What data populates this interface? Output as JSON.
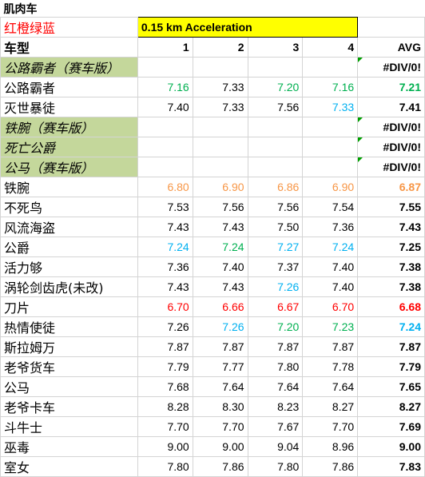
{
  "sheet_title": "肌肉车",
  "legend": "红橙绿蓝",
  "test_name": "0.15 km Acceleration",
  "header": {
    "name": "车型",
    "runs": [
      "1",
      "2",
      "3",
      "4"
    ],
    "avg": "AVG"
  },
  "colors": {
    "green": "#00b050",
    "blue": "#00b0f0",
    "orange": "#f79646",
    "red": "#ff0000",
    "highlight": "#ffff00",
    "subheader_fill": "#c4d79b"
  },
  "rows": [
    {
      "type": "sub",
      "name": "公路霸者（赛车版）",
      "avg": "#DIV/0!"
    },
    {
      "type": "car",
      "name": "公路霸者",
      "v": [
        {
          "t": "7.16",
          "c": "green"
        },
        {
          "t": "7.33",
          "c": ""
        },
        {
          "t": "7.20",
          "c": "green"
        },
        {
          "t": "7.16",
          "c": "green"
        }
      ],
      "avg": {
        "t": "7.21",
        "c": "green"
      }
    },
    {
      "type": "car",
      "name": "灭世暴徒",
      "v": [
        {
          "t": "7.40",
          "c": ""
        },
        {
          "t": "7.33",
          "c": ""
        },
        {
          "t": "7.56",
          "c": ""
        },
        {
          "t": "7.33",
          "c": "blue"
        }
      ],
      "avg": {
        "t": "7.41",
        "c": ""
      }
    },
    {
      "type": "sub",
      "name": "铁腕（赛车版）",
      "avg": "#DIV/0!"
    },
    {
      "type": "sub",
      "name": "死亡公爵",
      "avg": "#DIV/0!"
    },
    {
      "type": "sub",
      "name": "公马（赛车版）",
      "avg": "#DIV/0!"
    },
    {
      "type": "car",
      "name": "铁腕",
      "v": [
        {
          "t": "6.80",
          "c": "orange"
        },
        {
          "t": "6.90",
          "c": "orange"
        },
        {
          "t": "6.86",
          "c": "orange"
        },
        {
          "t": "6.90",
          "c": "orange"
        }
      ],
      "avg": {
        "t": "6.87",
        "c": "orange"
      }
    },
    {
      "type": "car",
      "name": "不死鸟",
      "v": [
        {
          "t": "7.53",
          "c": ""
        },
        {
          "t": "7.56",
          "c": ""
        },
        {
          "t": "7.56",
          "c": ""
        },
        {
          "t": "7.54",
          "c": ""
        }
      ],
      "avg": {
        "t": "7.55",
        "c": ""
      }
    },
    {
      "type": "car",
      "name": "风流海盗",
      "v": [
        {
          "t": "7.43",
          "c": ""
        },
        {
          "t": "7.43",
          "c": ""
        },
        {
          "t": "7.50",
          "c": ""
        },
        {
          "t": "7.36",
          "c": ""
        }
      ],
      "avg": {
        "t": "7.43",
        "c": ""
      }
    },
    {
      "type": "car",
      "name": "公爵",
      "v": [
        {
          "t": "7.24",
          "c": "blue"
        },
        {
          "t": "7.24",
          "c": "green"
        },
        {
          "t": "7.27",
          "c": "blue"
        },
        {
          "t": "7.24",
          "c": "blue"
        }
      ],
      "avg": {
        "t": "7.25",
        "c": ""
      }
    },
    {
      "type": "car",
      "name": "活力够",
      "v": [
        {
          "t": "7.36",
          "c": ""
        },
        {
          "t": "7.40",
          "c": ""
        },
        {
          "t": "7.37",
          "c": ""
        },
        {
          "t": "7.40",
          "c": ""
        }
      ],
      "avg": {
        "t": "7.38",
        "c": ""
      }
    },
    {
      "type": "car",
      "name": "涡轮剑齿虎(未改)",
      "v": [
        {
          "t": "7.43",
          "c": ""
        },
        {
          "t": "7.43",
          "c": ""
        },
        {
          "t": "7.26",
          "c": "blue"
        },
        {
          "t": "7.40",
          "c": ""
        }
      ],
      "avg": {
        "t": "7.38",
        "c": ""
      }
    },
    {
      "type": "car",
      "name": "刀片",
      "v": [
        {
          "t": "6.70",
          "c": "red"
        },
        {
          "t": "6.66",
          "c": "red"
        },
        {
          "t": "6.67",
          "c": "red"
        },
        {
          "t": "6.70",
          "c": "red"
        }
      ],
      "avg": {
        "t": "6.68",
        "c": "red"
      }
    },
    {
      "type": "car",
      "name": "热情使徒",
      "v": [
        {
          "t": "7.26",
          "c": ""
        },
        {
          "t": "7.26",
          "c": "blue"
        },
        {
          "t": "7.20",
          "c": "green"
        },
        {
          "t": "7.23",
          "c": "green"
        }
      ],
      "avg": {
        "t": "7.24",
        "c": "blue"
      }
    },
    {
      "type": "car",
      "name": "斯拉姆万",
      "v": [
        {
          "t": "7.87",
          "c": ""
        },
        {
          "t": "7.87",
          "c": ""
        },
        {
          "t": "7.87",
          "c": ""
        },
        {
          "t": "7.87",
          "c": ""
        }
      ],
      "avg": {
        "t": "7.87",
        "c": ""
      }
    },
    {
      "type": "car",
      "name": "老爷货车",
      "v": [
        {
          "t": "7.79",
          "c": ""
        },
        {
          "t": "7.77",
          "c": ""
        },
        {
          "t": "7.80",
          "c": ""
        },
        {
          "t": "7.78",
          "c": ""
        }
      ],
      "avg": {
        "t": "7.79",
        "c": ""
      }
    },
    {
      "type": "car",
      "name": "公马",
      "v": [
        {
          "t": "7.68",
          "c": ""
        },
        {
          "t": "7.64",
          "c": ""
        },
        {
          "t": "7.64",
          "c": ""
        },
        {
          "t": "7.64",
          "c": ""
        }
      ],
      "avg": {
        "t": "7.65",
        "c": ""
      }
    },
    {
      "type": "car",
      "name": "老爷卡车",
      "v": [
        {
          "t": "8.28",
          "c": ""
        },
        {
          "t": "8.30",
          "c": ""
        },
        {
          "t": "8.23",
          "c": ""
        },
        {
          "t": "8.27",
          "c": ""
        }
      ],
      "avg": {
        "t": "8.27",
        "c": ""
      }
    },
    {
      "type": "car",
      "name": "斗牛士",
      "v": [
        {
          "t": "7.70",
          "c": ""
        },
        {
          "t": "7.70",
          "c": ""
        },
        {
          "t": "7.67",
          "c": ""
        },
        {
          "t": "7.70",
          "c": ""
        }
      ],
      "avg": {
        "t": "7.69",
        "c": ""
      }
    },
    {
      "type": "car",
      "name": "巫毒",
      "v": [
        {
          "t": "9.00",
          "c": ""
        },
        {
          "t": "9.00",
          "c": ""
        },
        {
          "t": "9.04",
          "c": ""
        },
        {
          "t": "8.96",
          "c": ""
        }
      ],
      "avg": {
        "t": "9.00",
        "c": ""
      }
    },
    {
      "type": "car",
      "name": "室女",
      "v": [
        {
          "t": "7.80",
          "c": ""
        },
        {
          "t": "7.86",
          "c": ""
        },
        {
          "t": "7.80",
          "c": ""
        },
        {
          "t": "7.86",
          "c": ""
        }
      ],
      "avg": {
        "t": "7.83",
        "c": ""
      }
    }
  ]
}
